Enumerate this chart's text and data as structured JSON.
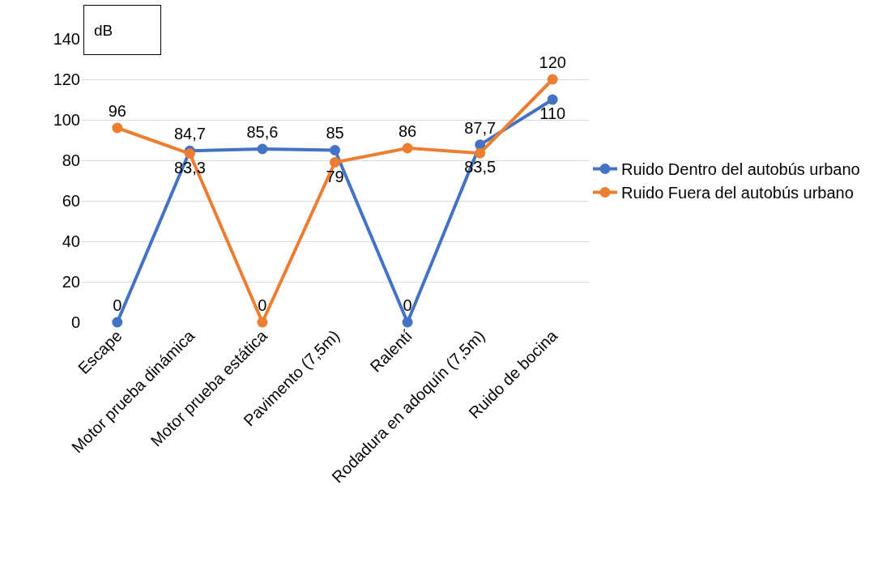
{
  "chart_data": {
    "type": "line",
    "ylabel": "dB",
    "categories": [
      "Escape",
      "Motor prueba dinámica",
      "Motor prueba estática",
      "Pavimento (7,5m)",
      "Ralentí",
      "Rodadura en adoquín (7,5m)",
      "Ruido de bocina"
    ],
    "series": [
      {
        "name": "Ruido Dentro del autobús urbano",
        "color": "#4472c4",
        "values": [
          0,
          84.7,
          85.6,
          85,
          0,
          87.7,
          110
        ],
        "value_labels": [
          "0",
          "84,7",
          "85,6",
          "85",
          "0",
          "87,7",
          "110"
        ]
      },
      {
        "name": "Ruido Fuera del autobús urbano",
        "color": "#ed7d31",
        "values": [
          96,
          83.3,
          0,
          79,
          86,
          83.5,
          120
        ],
        "value_labels": [
          "96",
          "83,3",
          "0",
          "79",
          "86",
          "83,5",
          "120"
        ]
      }
    ],
    "ylim": [
      0,
      140
    ],
    "yticks": [
      0,
      20,
      40,
      60,
      80,
      100,
      120,
      140
    ],
    "grid": "y",
    "legend": "right",
    "marker": "circle",
    "line_style": "solid"
  }
}
